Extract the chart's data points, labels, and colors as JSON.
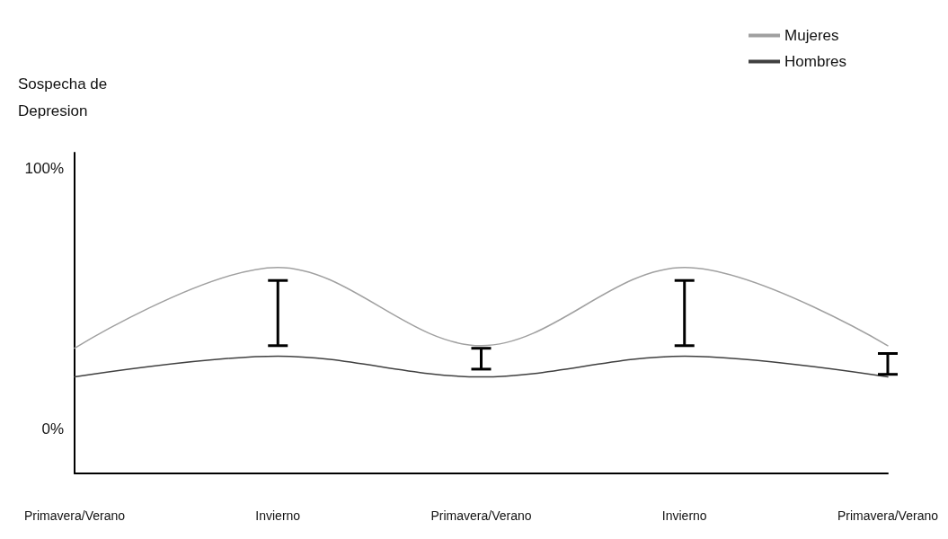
{
  "chart_data": {
    "type": "line",
    "ylabel": "Sospecha de Depresion",
    "categories": [
      "Primavera/Verano",
      "Invierno",
      "Primavera/Verano",
      "Invierno",
      "Primavera/Verano"
    ],
    "series": [
      {
        "name": "Mujeres",
        "color": "#a0a0a0",
        "values": [
          31,
          62,
          32,
          62,
          32
        ]
      },
      {
        "name": "Hombres",
        "color": "#404040",
        "values": [
          20,
          28,
          20,
          28,
          20
        ],
        "errors": [
          null,
          [
            32,
            57
          ],
          [
            23,
            31
          ],
          [
            32,
            57
          ],
          [
            21,
            29
          ]
        ]
      }
    ],
    "ylim": [
      -17,
      106
    ],
    "yticks": [
      {
        "value": 0,
        "label": "0%"
      },
      {
        "value": 100,
        "label": "100%"
      }
    ],
    "grid": false,
    "legend": "top right",
    "marker": "none",
    "line_style": "solid"
  }
}
